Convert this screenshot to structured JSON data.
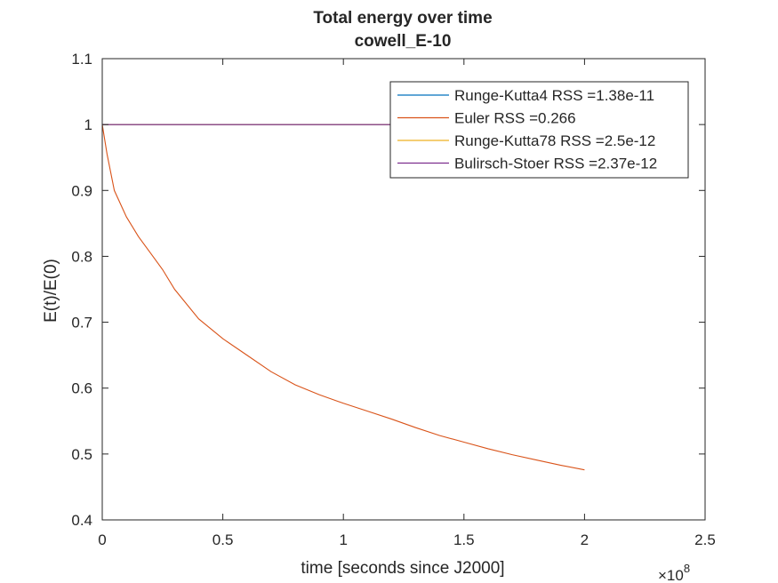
{
  "chart_data": {
    "type": "line",
    "title": "Total energy over time",
    "subtitle": "cowell_E-10",
    "xlabel": "time [seconds since J2000]",
    "ylabel": "E(t)/E(0)",
    "x_exponent_label": "×10",
    "x_exponent_power": "8",
    "xlim": [
      0,
      2.5
    ],
    "ylim": [
      0.4,
      1.1
    ],
    "xticks": [
      0,
      0.5,
      1,
      1.5,
      2,
      2.5
    ],
    "xtick_labels": [
      "0",
      "0.5",
      "1",
      "1.5",
      "2",
      "2.5"
    ],
    "yticks": [
      0.4,
      0.5,
      0.6,
      0.7,
      0.8,
      0.9,
      1,
      1.1
    ],
    "ytick_labels": [
      "0.4",
      "0.5",
      "0.6",
      "0.7",
      "0.8",
      "0.9",
      "1",
      "1.1"
    ],
    "grid": false,
    "legend_position": "top-right",
    "series": [
      {
        "name": "Runge-Kutta4 RSS =1.38e-11",
        "color": "#0072BD",
        "x": [
          0,
          0.5,
          1,
          1.5,
          2
        ],
        "y": [
          1,
          1,
          1,
          1,
          1
        ]
      },
      {
        "name": "Euler RSS =0.266",
        "color": "#D95319",
        "x": [
          0,
          0.02,
          0.05,
          0.1,
          0.15,
          0.2,
          0.25,
          0.3,
          0.4,
          0.5,
          0.6,
          0.7,
          0.8,
          0.9,
          1.0,
          1.1,
          1.2,
          1.3,
          1.4,
          1.5,
          1.6,
          1.7,
          1.8,
          1.9,
          2.0
        ],
        "y": [
          1.0,
          0.955,
          0.9,
          0.86,
          0.83,
          0.805,
          0.78,
          0.75,
          0.705,
          0.675,
          0.65,
          0.625,
          0.605,
          0.59,
          0.577,
          0.565,
          0.553,
          0.54,
          0.528,
          0.518,
          0.508,
          0.499,
          0.491,
          0.483,
          0.476
        ]
      },
      {
        "name": "Runge-Kutta78 RSS =2.5e-12",
        "color": "#EDB120",
        "x": [
          0,
          0.5,
          1,
          1.5,
          2
        ],
        "y": [
          1,
          1,
          1,
          1,
          1
        ]
      },
      {
        "name": "Bulirsch-Stoer RSS =2.37e-12",
        "color": "#7E2F8E",
        "x": [
          0,
          0.5,
          1,
          1.5,
          2
        ],
        "y": [
          1,
          1,
          1,
          1,
          1
        ]
      }
    ]
  }
}
